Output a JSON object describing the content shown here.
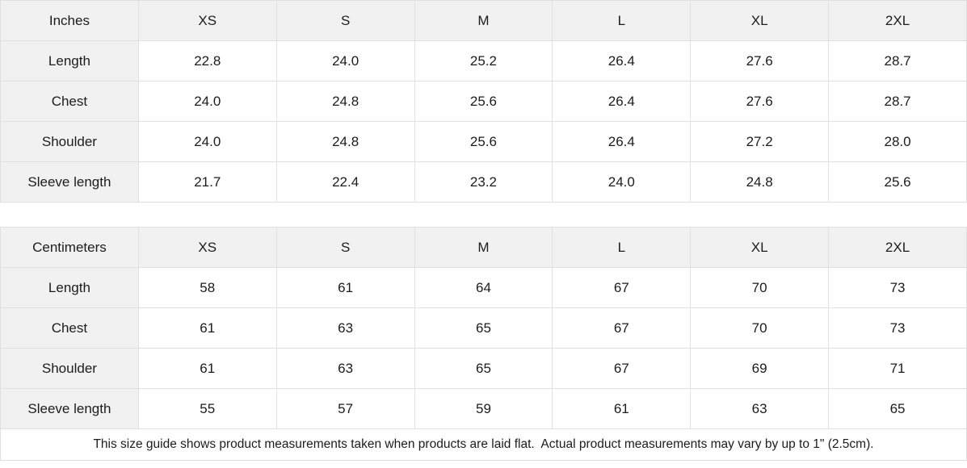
{
  "tables": [
    {
      "unit_label": "Inches",
      "sizes": [
        "XS",
        "S",
        "M",
        "L",
        "XL",
        "2XL"
      ],
      "rows": [
        {
          "label": "Length",
          "values": [
            "22.8",
            "24.0",
            "25.2",
            "26.4",
            "27.6",
            "28.7"
          ]
        },
        {
          "label": "Chest",
          "values": [
            "24.0",
            "24.8",
            "25.6",
            "26.4",
            "27.6",
            "28.7"
          ]
        },
        {
          "label": "Shoulder",
          "values": [
            "24.0",
            "24.8",
            "25.6",
            "26.4",
            "27.2",
            "28.0"
          ]
        },
        {
          "label": "Sleeve length",
          "values": [
            "21.7",
            "22.4",
            "23.2",
            "24.0",
            "24.8",
            "25.6"
          ]
        }
      ]
    },
    {
      "unit_label": "Centimeters",
      "sizes": [
        "XS",
        "S",
        "M",
        "L",
        "XL",
        "2XL"
      ],
      "rows": [
        {
          "label": "Length",
          "values": [
            "58",
            "61",
            "64",
            "67",
            "70",
            "73"
          ]
        },
        {
          "label": "Chest",
          "values": [
            "61",
            "63",
            "65",
            "67",
            "70",
            "73"
          ]
        },
        {
          "label": "Shoulder",
          "values": [
            "61",
            "63",
            "65",
            "67",
            "69",
            "71"
          ]
        },
        {
          "label": "Sleeve length",
          "values": [
            "55",
            "57",
            "59",
            "61",
            "63",
            "65"
          ]
        }
      ]
    }
  ],
  "footer": {
    "note": "This size guide shows product measurements taken when products are laid flat.  Actual product measurements may vary by up to 1\" (2.5cm)."
  },
  "colors": {
    "header_background": "#f1f1f1",
    "border": "#e0e0e0",
    "cell_background": "#ffffff",
    "text": "#1c1c1c"
  }
}
